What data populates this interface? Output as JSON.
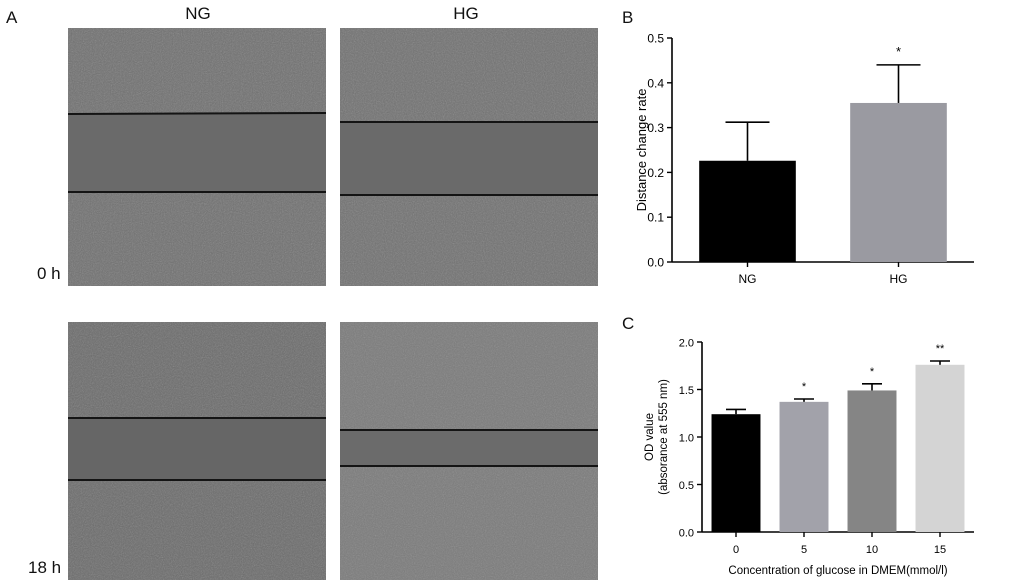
{
  "panels": {
    "a": {
      "letter": "A"
    },
    "b": {
      "letter": "B"
    },
    "c": {
      "letter": "C"
    }
  },
  "micrographs": {
    "columns": [
      "NG",
      "HG"
    ],
    "rows": [
      "0 h",
      "18 h"
    ]
  },
  "chart_data": [
    {
      "type": "bar",
      "panel": "B",
      "categories": [
        "NG",
        "HG"
      ],
      "values": [
        0.226,
        0.355
      ],
      "errors": [
        0.086,
        0.085
      ],
      "significance": [
        "",
        "*"
      ],
      "ylabel": "Distance change rate",
      "xlabel": "",
      "ylim": [
        0,
        0.5
      ],
      "yticks": [
        "0.0",
        "0.1",
        "0.2",
        "0.3",
        "0.4",
        "0.5"
      ],
      "bar_colors": [
        "#000000",
        "#9a9aa1"
      ],
      "grid": false,
      "legend": "none"
    },
    {
      "type": "bar",
      "panel": "C",
      "categories": [
        "0",
        "5",
        "10",
        "15"
      ],
      "values": [
        1.24,
        1.37,
        1.49,
        1.76
      ],
      "errors": [
        0.05,
        0.03,
        0.07,
        0.04
      ],
      "significance": [
        "",
        "*",
        "*",
        "**"
      ],
      "ylabel": "OD value",
      "ylabel2": "(absorance at 555 nm)",
      "xlabel": "Concentration of glucose in DMEM(mmol/l)",
      "ylim": [
        0,
        2.0
      ],
      "yticks": [
        "0.0",
        "0.5",
        "1.0",
        "1.5",
        "2.0"
      ],
      "bar_colors": [
        "#000000",
        "#a2a2aa",
        "#858585",
        "#d4d4d4"
      ],
      "grid": false,
      "legend": "none"
    }
  ]
}
